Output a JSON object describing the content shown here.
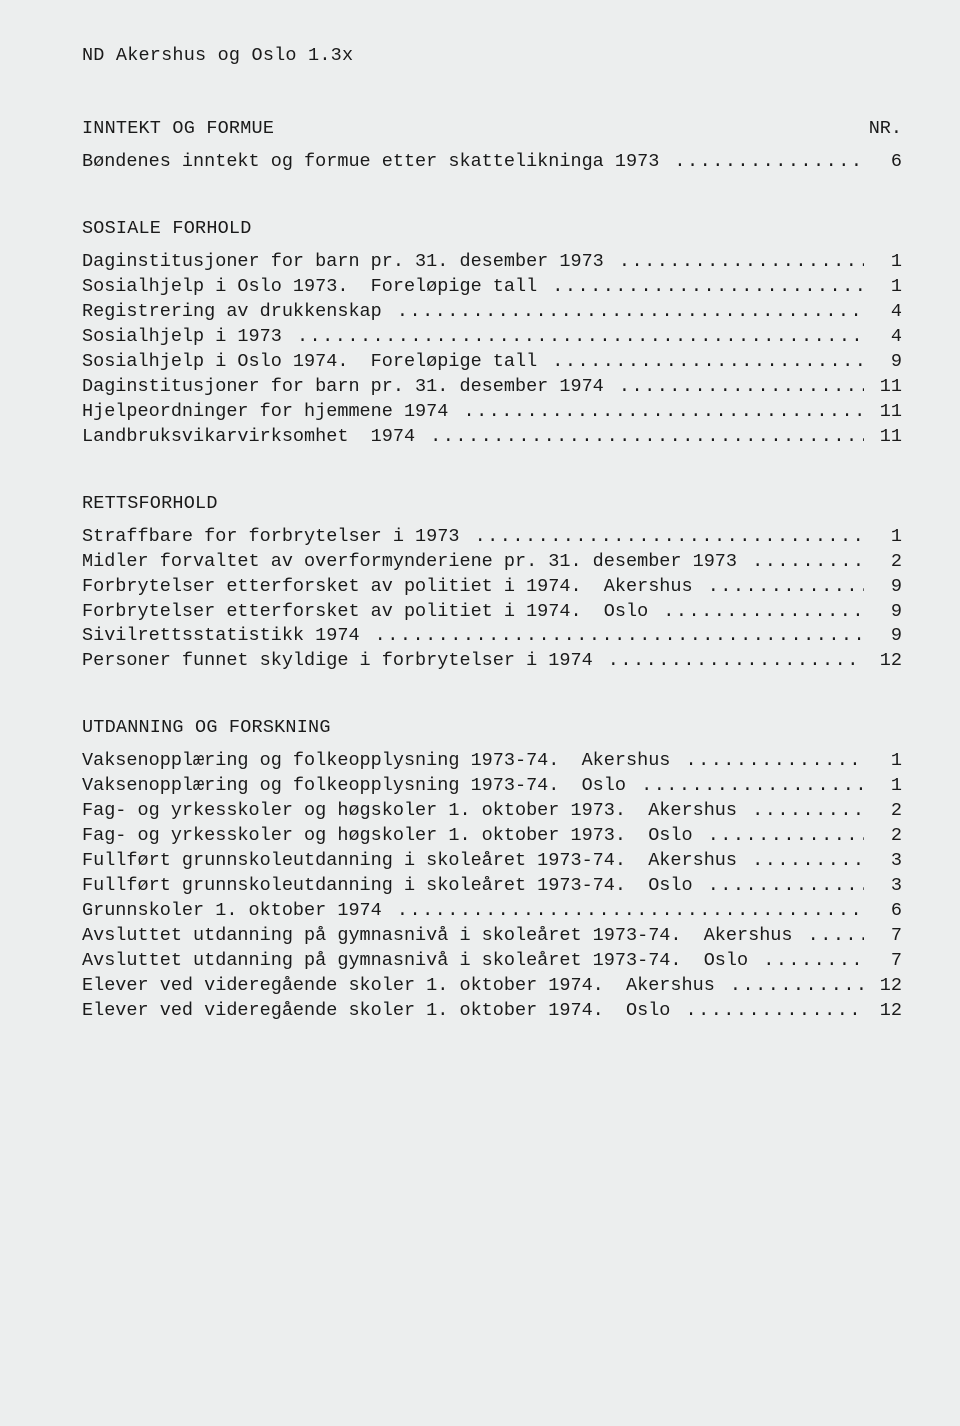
{
  "header": "ND  Akershus og Oslo  1.3x",
  "nr_label": "NR.",
  "dots_fill": "..........................................................................................",
  "sections": [
    {
      "title": "INNTEKT OG FORMUE",
      "show_nr_on_title": true,
      "items": [
        {
          "label": "Bøndenes inntekt og formue etter skattelikninga 1973",
          "nr": "6"
        }
      ]
    },
    {
      "title": "SOSIALE FORHOLD",
      "items": [
        {
          "label": "Daginstitusjoner for barn pr. 31. desember 1973",
          "nr": "1"
        },
        {
          "label": "Sosialhjelp i Oslo 1973.  Foreløpige tall",
          "nr": "1"
        },
        {
          "label": "Registrering av drukkenskap",
          "nr": "4"
        },
        {
          "label": "Sosialhjelp i 1973",
          "nr": "4"
        },
        {
          "label": "Sosialhjelp i Oslo 1974.  Foreløpige tall",
          "nr": "9"
        },
        {
          "label": "Daginstitusjoner for barn pr. 31. desember 1974",
          "nr": "11"
        },
        {
          "label": "Hjelpeordninger for hjemmene 1974",
          "nr": "11"
        },
        {
          "label": "Landbruksvikarvirksomhet  1974",
          "nr": "11"
        }
      ]
    },
    {
      "title": "RETTSFORHOLD",
      "items": [
        {
          "label": "Straffbare for forbrytelser i 1973",
          "nr": "1"
        },
        {
          "label": "Midler forvaltet av overformynderiene pr. 31. desember 1973",
          "nr": "2"
        },
        {
          "label": "Forbrytelser etterforsket av politiet i 1974.  Akershus",
          "nr": "9"
        },
        {
          "label": "Forbrytelser etterforsket av politiet i 1974.  Oslo",
          "nr": "9"
        },
        {
          "label": "Sivilrettsstatistikk 1974",
          "nr": "9"
        },
        {
          "label": "Personer funnet skyldige i forbrytelser i 1974",
          "nr": "12"
        }
      ]
    },
    {
      "title": "UTDANNING OG FORSKNING",
      "items": [
        {
          "label": "Vaksenopplæring og folkeopplysning 1973-74.  Akershus",
          "nr": "1"
        },
        {
          "label": "Vaksenopplæring og folkeopplysning 1973-74.  Oslo",
          "nr": "1"
        },
        {
          "label": "Fag- og yrkesskoler og høgskoler 1. oktober 1973.  Akershus",
          "nr": "2"
        },
        {
          "label": "Fag- og yrkesskoler og høgskoler 1. oktober 1973.  Oslo",
          "nr": "2"
        },
        {
          "label": "Fullført grunnskoleutdanning i skoleåret 1973-74.  Akershus",
          "nr": "3"
        },
        {
          "label": "Fullført grunnskoleutdanning i skoleåret 1973-74.  Oslo",
          "nr": "3"
        },
        {
          "label": "Grunnskoler 1. oktober 1974",
          "nr": "6"
        },
        {
          "label": "Avsluttet utdanning på gymnasnivå i skoleåret 1973-74.  Akershus",
          "nr": "7"
        },
        {
          "label": "Avsluttet utdanning på gymnasnivå i skoleåret 1973-74.  Oslo",
          "nr": "7"
        },
        {
          "label": "Elever ved videregående skoler 1. oktober 1974.  Akershus",
          "nr": "12"
        },
        {
          "label": "Elever ved videregående skoler 1. oktober 1974.  Oslo",
          "nr": "12"
        }
      ]
    }
  ]
}
